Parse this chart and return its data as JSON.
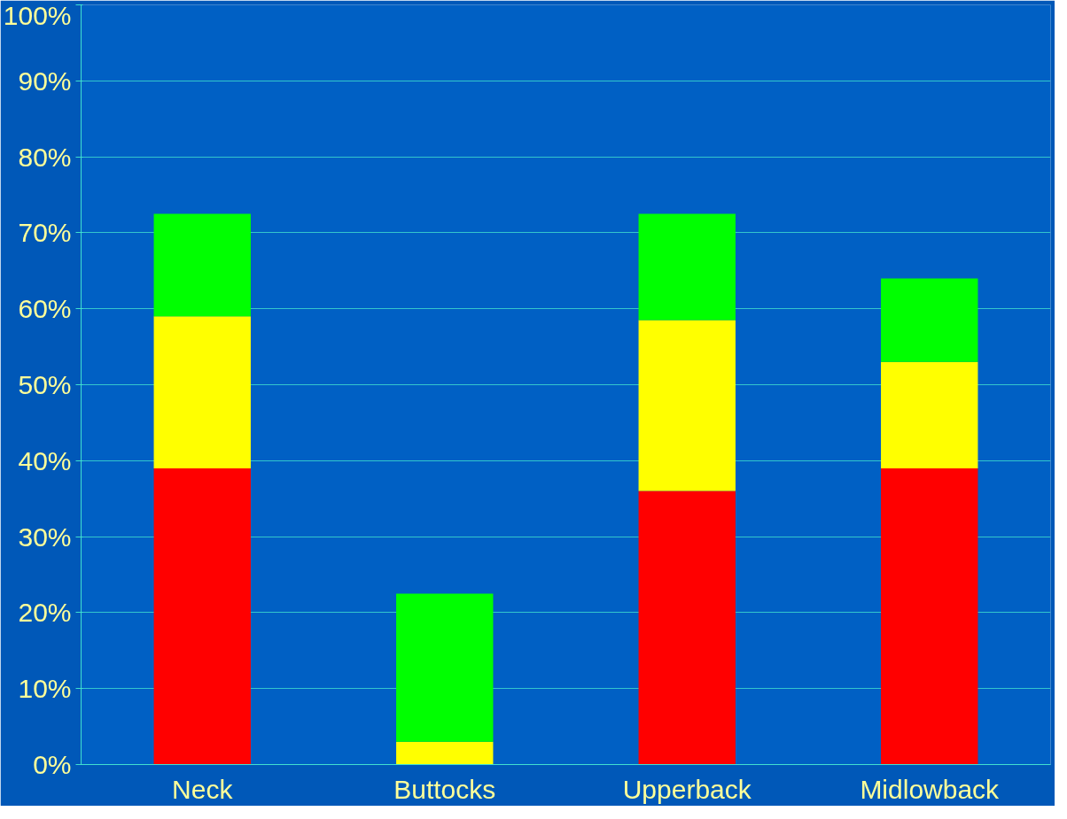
{
  "chart_data": {
    "type": "bar",
    "stacked": true,
    "categories": [
      "Neck",
      "Buttocks",
      "Upperback",
      "Midlowback"
    ],
    "series": [
      {
        "color": "#ff0000",
        "values": [
          39,
          0,
          36,
          39
        ]
      },
      {
        "color": "#ffff00",
        "values": [
          20,
          3,
          22.5,
          14
        ]
      },
      {
        "color": "#00ff00",
        "values": [
          13.5,
          19.5,
          14,
          11
        ]
      }
    ],
    "ylim": [
      0,
      100
    ],
    "yticks": [
      {
        "value": 0,
        "label": "0%"
      },
      {
        "value": 10,
        "label": "10%"
      },
      {
        "value": 20,
        "label": "20%"
      },
      {
        "value": 30,
        "label": "30%"
      },
      {
        "value": 40,
        "label": "40%"
      },
      {
        "value": 50,
        "label": "50%"
      },
      {
        "value": 60,
        "label": "60%"
      },
      {
        "value": 70,
        "label": "70%"
      },
      {
        "value": 80,
        "label": "80%"
      },
      {
        "value": 90,
        "label": "90%"
      },
      {
        "value": 100,
        "label": "100%"
      }
    ],
    "grid": "y"
  }
}
